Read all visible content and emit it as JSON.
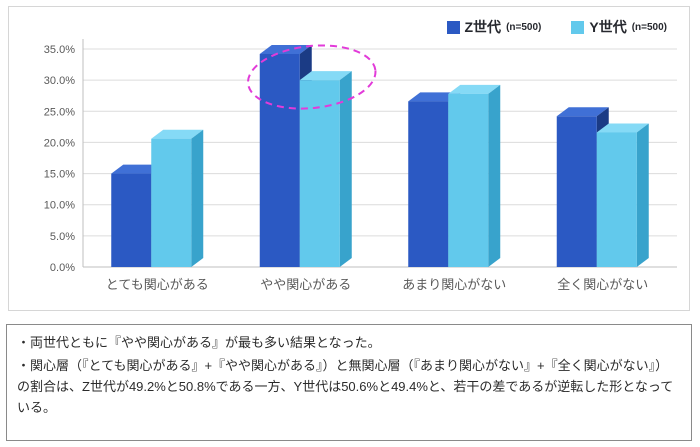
{
  "legend": {
    "series": [
      {
        "label": "Z世代",
        "n": "(n=500)",
        "color": "#2b59c3"
      },
      {
        "label": "Y世代",
        "n": "(n=500)",
        "color": "#62c9ec"
      }
    ]
  },
  "chart_data": {
    "type": "bar",
    "title": "",
    "categories": [
      "とても関心がある",
      "やや関心がある",
      "あまり関心がない",
      "全く関心がない"
    ],
    "series": [
      {
        "name": "Z世代 (n=500)",
        "values": [
          15.0,
          34.2,
          26.6,
          24.2
        ],
        "colors": {
          "front": "#2b59c3",
          "top": "#4070d6",
          "side": "#1b3b85"
        }
      },
      {
        "name": "Y世代 (n=500)",
        "values": [
          20.6,
          30.0,
          27.8,
          21.6
        ],
        "colors": {
          "front": "#62c9ec",
          "top": "#85daf6",
          "side": "#38a3cc"
        }
      }
    ],
    "ylim": [
      0,
      35
    ],
    "ytick_step": 5,
    "yticks": [
      "0.0%",
      "5.0%",
      "10.0%",
      "15.0%",
      "20.0%",
      "25.0%",
      "30.0%",
      "35.0%"
    ],
    "grid": true,
    "legend_position": "top-right",
    "annotation": {
      "type": "dashed-ellipse",
      "category_index": 1,
      "color": "#e23bd9"
    }
  },
  "notes": {
    "items": [
      "・両世代ともに『やや関心がある』が最も多い結果となった。",
      "・関心層（『とても関心がある』+『やや関心がある』）と無関心層（『あまり関心がない』+『全く関心がない』）の割合は、Z世代が49.2%と50.8%である一方、Y世代は50.6%と49.4%と、若干の差であるが逆転した形となっている。"
    ]
  }
}
